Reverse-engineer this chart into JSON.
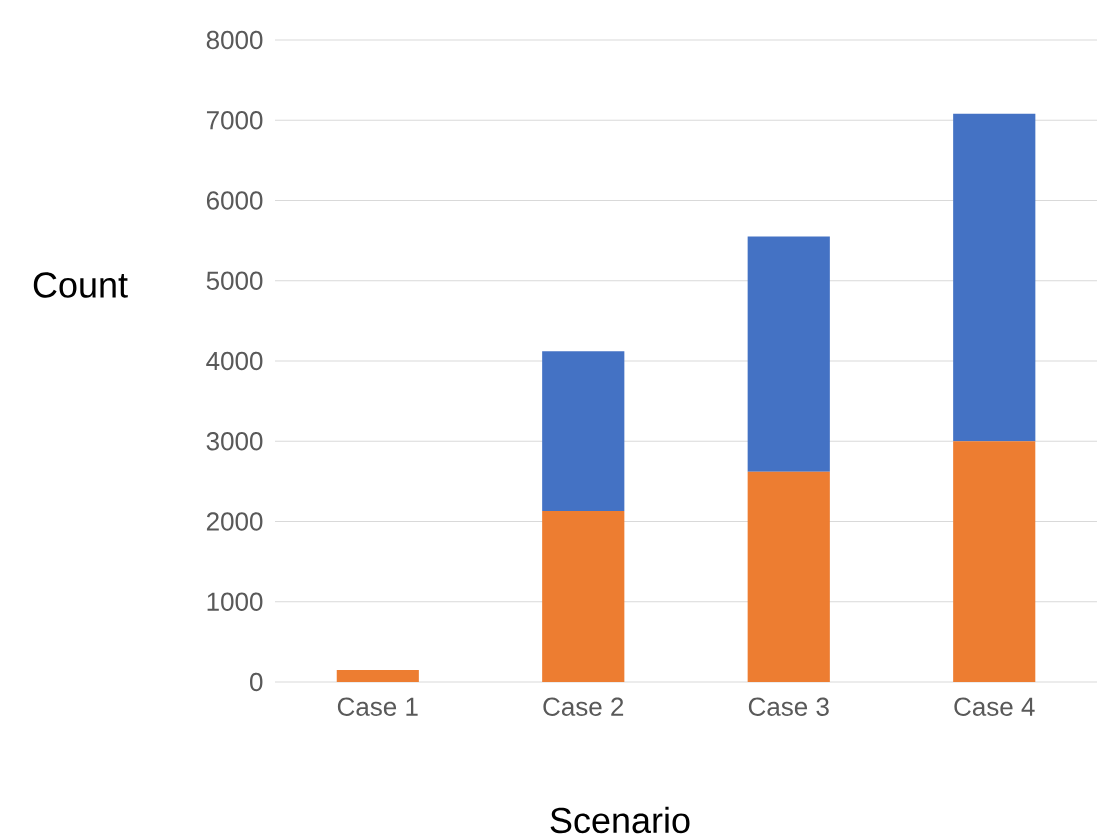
{
  "chart_data": {
    "type": "bar",
    "stacked": true,
    "xlabel": "Scenario",
    "ylabel": "Count",
    "categories": [
      "Case 1",
      "Case 2",
      "Case 3",
      "Case 4"
    ],
    "series": [
      {
        "color": "#ed7d31",
        "values": [
          150,
          2130,
          2620,
          3000
        ]
      },
      {
        "color": "#4472c4",
        "values": [
          0,
          1990,
          2930,
          4080
        ]
      }
    ],
    "ylim": [
      0,
      8000
    ],
    "yticks": [
      0,
      1000,
      2000,
      3000,
      4000,
      5000,
      6000,
      7000,
      8000
    ],
    "grid": "y"
  }
}
